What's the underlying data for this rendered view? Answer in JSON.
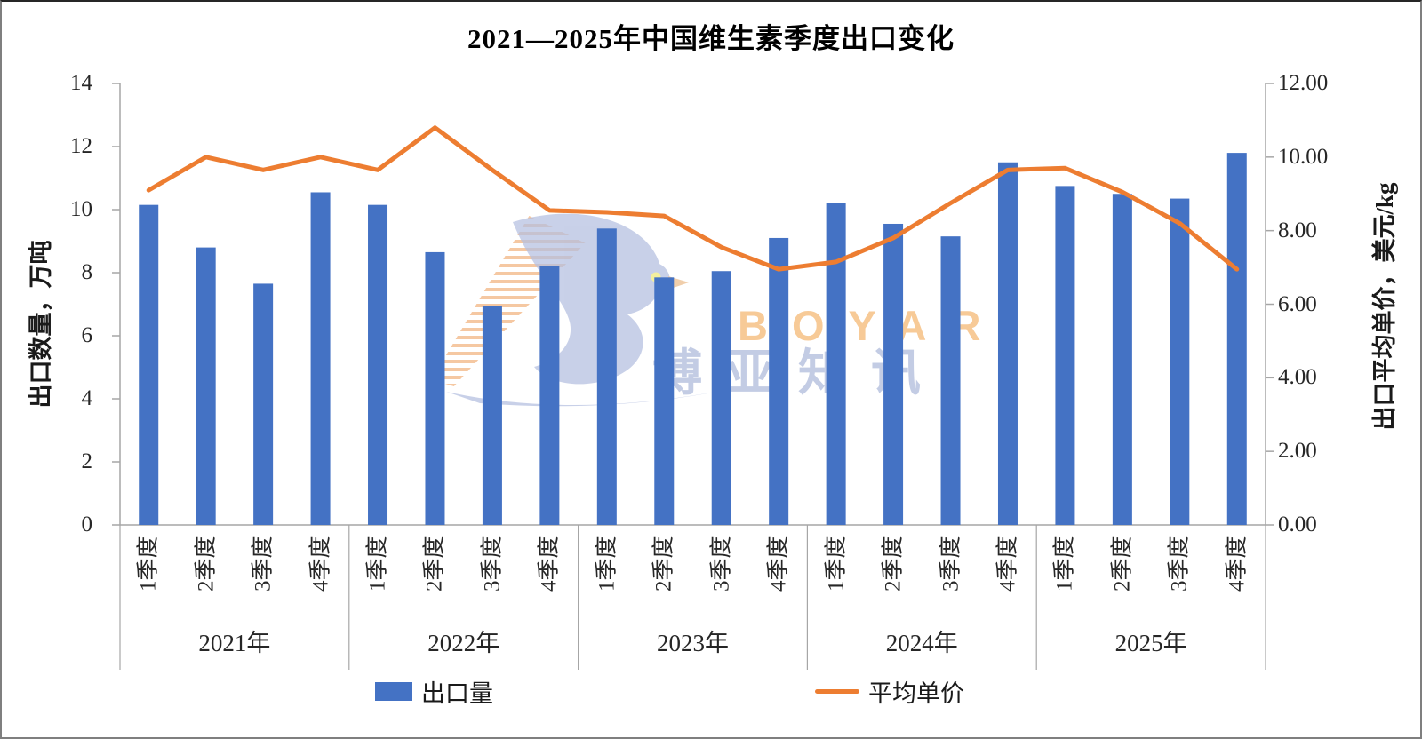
{
  "watermark": {
    "brand": "BOYAR",
    "brand_cn": "博亚知讯"
  },
  "chart_data": {
    "type": "bar+line",
    "title": "2021—2025年中国维生素季度出口变化",
    "years": [
      "2021年",
      "2022年",
      "2023年",
      "2024年",
      "2025年"
    ],
    "quarters": [
      "1季度",
      "2季度",
      "3季度",
      "4季度"
    ],
    "series": [
      {
        "name": "出口量",
        "type": "bar",
        "axis": "left",
        "color": "#4472C4",
        "values": [
          10.15,
          8.8,
          7.65,
          10.55,
          10.15,
          8.65,
          6.95,
          8.2,
          9.4,
          7.85,
          8.05,
          9.1,
          10.2,
          9.55,
          9.15,
          11.5,
          10.75,
          10.5,
          10.35,
          11.8
        ]
      },
      {
        "name": "平均单价",
        "type": "line",
        "axis": "right",
        "color": "#ED7D31",
        "values": [
          9.1,
          10.0,
          9.65,
          10.0,
          9.65,
          10.8,
          9.65,
          8.55,
          8.5,
          8.4,
          7.55,
          6.95,
          7.15,
          7.8,
          8.75,
          9.65,
          9.7,
          9.05,
          8.2,
          6.95
        ]
      }
    ],
    "left_axis": {
      "title": "出口数量，万吨",
      "min": 0,
      "max": 14,
      "step": 2,
      "tick_labels": [
        "0",
        "2",
        "4",
        "6",
        "8",
        "10",
        "12",
        "14"
      ]
    },
    "right_axis": {
      "title": "出口平均单价，美元/kg",
      "min": 0,
      "max": 12,
      "step": 2,
      "tick_labels": [
        "0.00",
        "2.00",
        "4.00",
        "6.00",
        "8.00",
        "10.00",
        "12.00"
      ]
    },
    "legend_position": "bottom",
    "gridlines": false,
    "axis_line_color": "#A6A6A6"
  }
}
